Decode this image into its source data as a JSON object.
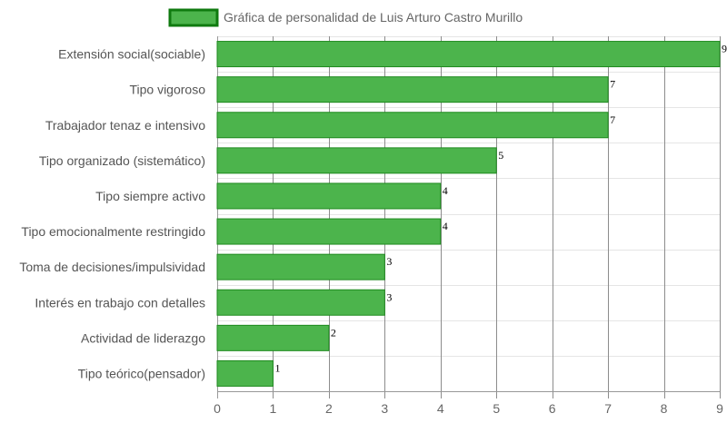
{
  "chart_data": {
    "type": "bar",
    "orientation": "horizontal",
    "title": "",
    "xlabel": "",
    "ylabel": "",
    "categories": [
      "Extensión social(sociable)",
      "Tipo vigoroso",
      "Trabajador tenaz e intensivo",
      "Tipo organizado (sistemático)",
      "Tipo siempre activo",
      "Tipo emocionalmente restringido",
      "Toma de decisiones/impulsividad",
      "Interés en trabajo con detalles",
      "Actividad de liderazgo",
      "Tipo teórico(pensador)"
    ],
    "series": [
      {
        "name": "Gráfica de personalidad de Luis Arturo Castro Murillo",
        "values": [
          9,
          7,
          7,
          5,
          4,
          4,
          3,
          3,
          2,
          1
        ],
        "color": "#4cb44c",
        "border_color": "#1f8a1f"
      }
    ],
    "xlim": [
      0,
      9
    ],
    "x_ticks": [
      "0",
      "1",
      "2",
      "3",
      "4",
      "5",
      "6",
      "7",
      "8",
      "9"
    ],
    "grid": true,
    "legend_position": "top",
    "data_labels": true
  },
  "colors": {
    "bar_fill": "#4cb44c",
    "bar_border": "#1f8a1f",
    "legend_border": "#0f7a0f",
    "grid_vertical": "#8c8c8c",
    "grid_horizontal": "#e5e5e5",
    "axis": "#999999"
  }
}
